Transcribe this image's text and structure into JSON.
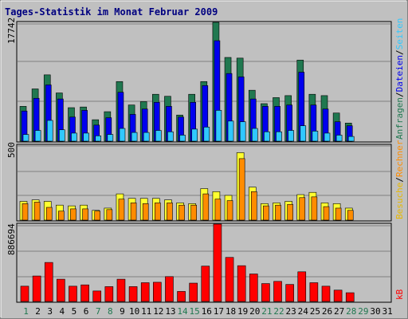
{
  "title": "Tages-Statistik im Monat Februar 2009",
  "colors": {
    "background": "#c0c0c0",
    "panel": "#c0c0c0",
    "grid": "#808080",
    "anfragen": "#207850",
    "dateien": "#0000ee",
    "seiten": "#30c8ff",
    "besuche": "#ffff30",
    "rechner": "#ff8c00",
    "kb": "#ff0000",
    "title": "#000080",
    "weekend_label": "#207850",
    "weekday_label": "#000000"
  },
  "right_legend": {
    "top": [
      {
        "text": "Anfragen",
        "color": "#207850"
      },
      {
        "text": "/",
        "color": "#000000"
      },
      {
        "text": "Dateien",
        "color": "#0000ee"
      },
      {
        "text": "/",
        "color": "#000000"
      },
      {
        "text": "Seiten",
        "color": "#30c8ff"
      }
    ],
    "middle": [
      {
        "text": "Besuche",
        "color": "#e8b800"
      },
      {
        "text": "/",
        "color": "#000000"
      },
      {
        "text": "Rechner",
        "color": "#ff8c00"
      }
    ],
    "bottom": [
      {
        "text": "kB",
        "color": "#ff0000"
      }
    ]
  },
  "chart_data": [
    {
      "type": "bar",
      "panel": "top",
      "ymax_label": "17742",
      "ylim": [
        0,
        17742
      ],
      "categories": [
        1,
        2,
        3,
        4,
        5,
        6,
        7,
        8,
        9,
        10,
        11,
        12,
        13,
        14,
        15,
        16,
        17,
        18,
        19,
        20,
        21,
        22,
        23,
        24,
        25,
        26,
        27,
        28,
        29,
        30,
        31
      ],
      "series": [
        {
          "name": "Anfragen",
          "values": [
            5200,
            7800,
            9900,
            7200,
            5000,
            5100,
            3200,
            4400,
            8900,
            5400,
            5900,
            7000,
            6700,
            3900,
            7000,
            8900,
            17742,
            12500,
            12400,
            7600,
            5600,
            6500,
            6800,
            12100,
            7000,
            6800,
            4200,
            2700,
            null,
            null,
            null
          ]
        },
        {
          "name": "Dateien",
          "values": [
            4500,
            6400,
            8400,
            6300,
            3600,
            4600,
            2400,
            3500,
            7300,
            4000,
            4800,
            5800,
            5200,
            3600,
            5800,
            8300,
            15000,
            10100,
            9600,
            6300,
            5200,
            5200,
            5400,
            10300,
            5400,
            4800,
            2900,
            2300,
            null,
            null,
            null
          ]
        },
        {
          "name": "Seiten",
          "values": [
            1000,
            1600,
            3100,
            1700,
            1200,
            1200,
            800,
            1000,
            1900,
            1300,
            1300,
            1600,
            1400,
            900,
            1800,
            2100,
            4600,
            3000,
            2900,
            1900,
            1400,
            1400,
            1600,
            2300,
            1500,
            1200,
            900,
            700,
            null,
            null,
            null
          ]
        }
      ]
    },
    {
      "type": "bar",
      "panel": "middle",
      "ymax_label": "500",
      "ylim": [
        0,
        500
      ],
      "categories": [
        1,
        2,
        3,
        4,
        5,
        6,
        7,
        8,
        9,
        10,
        11,
        12,
        13,
        14,
        15,
        16,
        17,
        18,
        19,
        20,
        21,
        22,
        23,
        24,
        25,
        26,
        27,
        28,
        29,
        30,
        31
      ],
      "series": [
        {
          "name": "Besuche",
          "values": [
            125,
            135,
            125,
            100,
            95,
            100,
            65,
            80,
            175,
            145,
            145,
            145,
            135,
            115,
            110,
            210,
            190,
            165,
            450,
            220,
            110,
            115,
            125,
            170,
            185,
            115,
            110,
            80,
            null,
            null,
            null
          ]
        },
        {
          "name": "Rechner",
          "values": [
            110,
            120,
            85,
            60,
            75,
            75,
            60,
            70,
            140,
            115,
            110,
            115,
            115,
            100,
            100,
            175,
            140,
            130,
            410,
            190,
            95,
            100,
            105,
            150,
            155,
            90,
            80,
            65,
            null,
            null,
            null
          ]
        }
      ]
    },
    {
      "type": "bar",
      "panel": "bottom",
      "ymax_label": "886694",
      "ylim": [
        0,
        886694
      ],
      "categories": [
        1,
        2,
        3,
        4,
        5,
        6,
        7,
        8,
        9,
        10,
        11,
        12,
        13,
        14,
        15,
        16,
        17,
        18,
        19,
        20,
        21,
        22,
        23,
        24,
        25,
        26,
        27,
        28,
        29,
        30,
        31
      ],
      "series": [
        {
          "name": "kB",
          "values": [
            175000,
            292000,
            447000,
            255000,
            175000,
            190000,
            120000,
            170000,
            255000,
            170000,
            215000,
            220000,
            285000,
            115000,
            210000,
            405000,
            886694,
            505000,
            410000,
            315000,
            205000,
            230000,
            195000,
            340000,
            215000,
            175000,
            130000,
            100000,
            null,
            null,
            null
          ]
        }
      ]
    }
  ],
  "days": [
    {
      "label": "1",
      "weekend": true
    },
    {
      "label": "2",
      "weekend": false
    },
    {
      "label": "3",
      "weekend": false
    },
    {
      "label": "4",
      "weekend": false
    },
    {
      "label": "5",
      "weekend": false
    },
    {
      "label": "6",
      "weekend": false
    },
    {
      "label": "7",
      "weekend": true
    },
    {
      "label": "8",
      "weekend": true
    },
    {
      "label": "9",
      "weekend": false
    },
    {
      "label": "10",
      "weekend": false
    },
    {
      "label": "11",
      "weekend": false
    },
    {
      "label": "12",
      "weekend": false
    },
    {
      "label": "13",
      "weekend": false
    },
    {
      "label": "14",
      "weekend": true
    },
    {
      "label": "15",
      "weekend": true
    },
    {
      "label": "16",
      "weekend": false
    },
    {
      "label": "17",
      "weekend": false
    },
    {
      "label": "18",
      "weekend": false
    },
    {
      "label": "19",
      "weekend": false
    },
    {
      "label": "20",
      "weekend": false
    },
    {
      "label": "21",
      "weekend": true
    },
    {
      "label": "22",
      "weekend": true
    },
    {
      "label": "23",
      "weekend": false
    },
    {
      "label": "24",
      "weekend": false
    },
    {
      "label": "25",
      "weekend": false
    },
    {
      "label": "26",
      "weekend": false
    },
    {
      "label": "27",
      "weekend": false
    },
    {
      "label": "28",
      "weekend": true
    },
    {
      "label": "29",
      "weekend": true
    },
    {
      "label": "30",
      "weekend": false
    },
    {
      "label": "31",
      "weekend": false
    }
  ]
}
